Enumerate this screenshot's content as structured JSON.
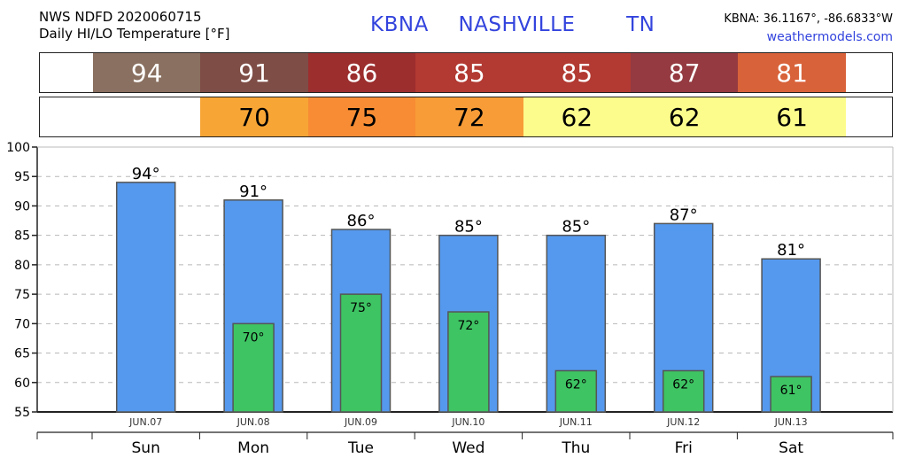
{
  "header": {
    "line1": "NWS NDFD 2020060715",
    "line2": "Daily HI/LO Temperature [°F]",
    "station": "KBNA",
    "city": "NASHVILLE",
    "state": "TN",
    "coords": "KBNA: 36.1167°, -86.6833°W",
    "site": "weathermodels.com"
  },
  "colors": {
    "hi_bar": "#5599ee",
    "lo_bar": "#3ec463",
    "title_blue": "#3344dd"
  },
  "strips": {
    "high": [
      {
        "value": "94",
        "bg": "#8a7060",
        "fg": "#ffffff"
      },
      {
        "value": "91",
        "bg": "#7e4d45",
        "fg": "#ffffff"
      },
      {
        "value": "86",
        "bg": "#9c2e2e",
        "fg": "#ffffff"
      },
      {
        "value": "85",
        "bg": "#b23a32",
        "fg": "#ffffff"
      },
      {
        "value": "85",
        "bg": "#b23a32",
        "fg": "#ffffff"
      },
      {
        "value": "87",
        "bg": "#943a40",
        "fg": "#ffffff"
      },
      {
        "value": "81",
        "bg": "#d8623a",
        "fg": "#ffffff"
      }
    ],
    "low": [
      {
        "value": "",
        "bg": "#ffffff",
        "fg": "#000000"
      },
      {
        "value": "70",
        "bg": "#f7a535",
        "fg": "#000000"
      },
      {
        "value": "75",
        "bg": "#f78c34",
        "fg": "#000000"
      },
      {
        "value": "72",
        "bg": "#f89c38",
        "fg": "#000000"
      },
      {
        "value": "62",
        "bg": "#fcfc8c",
        "fg": "#000000"
      },
      {
        "value": "62",
        "bg": "#fcfc8c",
        "fg": "#000000"
      },
      {
        "value": "61",
        "bg": "#fcfc8c",
        "fg": "#000000"
      }
    ]
  },
  "chart_data": {
    "type": "bar",
    "categories": [
      "Sun",
      "Mon",
      "Tue",
      "Wed",
      "Thu",
      "Fri",
      "Sat"
    ],
    "dates": [
      "JUN.07",
      "JUN.08",
      "JUN.09",
      "JUN.10",
      "JUN.11",
      "JUN.12",
      "JUN.13"
    ],
    "series": [
      {
        "values": [
          94,
          91,
          86,
          85,
          85,
          87,
          81
        ]
      },
      {
        "values": [
          null,
          70,
          75,
          72,
          62,
          62,
          61
        ]
      }
    ],
    "ylim": [
      55,
      100
    ],
    "yticks": [
      55,
      60,
      65,
      70,
      75,
      80,
      85,
      90,
      95,
      100
    ],
    "degree_suffix": "°",
    "grid": true
  }
}
